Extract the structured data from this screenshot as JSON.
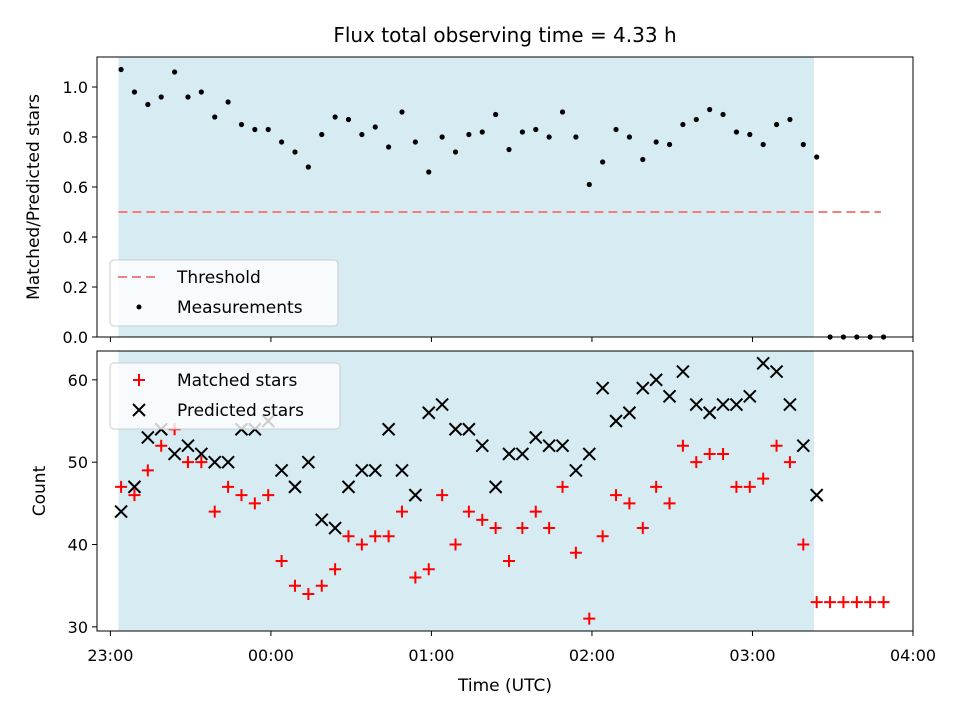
{
  "chart_data": [
    {
      "type": "scatter",
      "title": "Flux total observing time = 4.33 h",
      "ylabel": "Matched/Predicted stars",
      "xlim": [
        "22:55",
        "04:00"
      ],
      "ylim": [
        0,
        1.12
      ],
      "yticks": [
        {
          "v": 0,
          "label": "0.0"
        },
        {
          "v": 0.2,
          "label": "0.2"
        },
        {
          "v": 0.4,
          "label": "0.4"
        },
        {
          "v": 0.6,
          "label": "0.6"
        },
        {
          "v": 0.8,
          "label": "0.8"
        },
        {
          "v": 1.0,
          "label": "1.0"
        }
      ],
      "observing_span": [
        "23:03",
        "03:23"
      ],
      "threshold": {
        "name": "Threshold",
        "value": 0.5,
        "x_start": "23:03",
        "x_end": "03:48",
        "color": "#f08080"
      },
      "legend": {
        "placement": "lower-left",
        "entries": [
          "Threshold",
          "Measurements"
        ]
      },
      "series": [
        {
          "name": "Measurements",
          "marker": "dot",
          "color": "#000000",
          "x": [
            "23:04",
            "23:09",
            "23:14",
            "23:19",
            "23:24",
            "23:29",
            "23:34",
            "23:39",
            "23:44",
            "23:49",
            "23:54",
            "23:59",
            "00:04",
            "00:09",
            "00:14",
            "00:19",
            "00:24",
            "00:29",
            "00:34",
            "00:39",
            "00:44",
            "00:49",
            "00:54",
            "00:59",
            "01:04",
            "01:09",
            "01:14",
            "01:19",
            "01:24",
            "01:29",
            "01:34",
            "01:39",
            "01:44",
            "01:49",
            "01:54",
            "01:59",
            "02:04",
            "02:09",
            "02:14",
            "02:19",
            "02:24",
            "02:29",
            "02:34",
            "02:39",
            "02:44",
            "02:49",
            "02:54",
            "02:59",
            "03:04",
            "03:09",
            "03:14",
            "03:19",
            "03:24",
            "03:29",
            "03:34",
            "03:39",
            "03:44",
            "03:49"
          ],
          "y": [
            1.07,
            0.98,
            0.93,
            0.96,
            1.06,
            0.96,
            0.98,
            0.88,
            0.94,
            0.85,
            0.83,
            0.83,
            0.78,
            0.74,
            0.68,
            0.81,
            0.88,
            0.87,
            0.81,
            0.84,
            0.76,
            0.9,
            0.78,
            0.66,
            0.8,
            0.74,
            0.81,
            0.82,
            0.89,
            0.75,
            0.82,
            0.83,
            0.8,
            0.9,
            0.8,
            0.61,
            0.7,
            0.83,
            0.8,
            0.71,
            0.78,
            0.77,
            0.85,
            0.87,
            0.91,
            0.89,
            0.82,
            0.81,
            0.77,
            0.85,
            0.87,
            0.77,
            0.72,
            0.0,
            0.0,
            0.0,
            0.0,
            0.0
          ]
        }
      ]
    },
    {
      "type": "scatter",
      "xlabel": "Time (UTC)",
      "ylabel": "Count",
      "xlim": [
        "22:55",
        "04:00"
      ],
      "ylim": [
        29.5,
        63.5
      ],
      "xticks": [
        "23:00",
        "00:00",
        "01:00",
        "02:00",
        "03:00",
        "04:00"
      ],
      "yticks": [
        {
          "v": 30,
          "label": "30"
        },
        {
          "v": 40,
          "label": "40"
        },
        {
          "v": 50,
          "label": "50"
        },
        {
          "v": 60,
          "label": "60"
        }
      ],
      "observing_span": [
        "23:03",
        "03:23"
      ],
      "legend": {
        "placement": "upper-left",
        "entries": [
          "Matched stars",
          "Predicted stars"
        ]
      },
      "series": [
        {
          "name": "Matched stars",
          "marker": "plus",
          "color": "#ff0000",
          "x": [
            "23:04",
            "23:09",
            "23:14",
            "23:19",
            "23:24",
            "23:29",
            "23:34",
            "23:39",
            "23:44",
            "23:49",
            "23:54",
            "23:59",
            "00:04",
            "00:09",
            "00:14",
            "00:19",
            "00:24",
            "00:29",
            "00:34",
            "00:39",
            "00:44",
            "00:49",
            "00:54",
            "00:59",
            "01:04",
            "01:09",
            "01:14",
            "01:19",
            "01:24",
            "01:29",
            "01:34",
            "01:39",
            "01:44",
            "01:49",
            "01:54",
            "01:59",
            "02:04",
            "02:09",
            "02:14",
            "02:19",
            "02:24",
            "02:29",
            "02:34",
            "02:39",
            "02:44",
            "02:49",
            "02:54",
            "02:59",
            "03:04",
            "03:09",
            "03:14",
            "03:19",
            "03:24",
            "03:29",
            "03:34",
            "03:39",
            "03:44",
            "03:49"
          ],
          "y": [
            47,
            46,
            49,
            52,
            54,
            50,
            50,
            44,
            47,
            46,
            45,
            46,
            38,
            35,
            34,
            35,
            37,
            41,
            40,
            41,
            41,
            44,
            36,
            37,
            46,
            40,
            44,
            43,
            42,
            38,
            42,
            44,
            42,
            47,
            39,
            31,
            41,
            46,
            45,
            42,
            47,
            45,
            52,
            50,
            51,
            51,
            47,
            47,
            48,
            52,
            50,
            40,
            33,
            33,
            33,
            33,
            33,
            33
          ]
        },
        {
          "name": "Predicted stars",
          "marker": "x",
          "color": "#000000",
          "x": [
            "23:04",
            "23:09",
            "23:14",
            "23:19",
            "23:24",
            "23:29",
            "23:34",
            "23:39",
            "23:44",
            "23:49",
            "23:54",
            "23:59",
            "00:04",
            "00:09",
            "00:14",
            "00:19",
            "00:24",
            "00:29",
            "00:34",
            "00:39",
            "00:44",
            "00:49",
            "00:54",
            "00:59",
            "01:04",
            "01:09",
            "01:14",
            "01:19",
            "01:24",
            "01:29",
            "01:34",
            "01:39",
            "01:44",
            "01:49",
            "01:54",
            "01:59",
            "02:04",
            "02:09",
            "02:14",
            "02:19",
            "02:24",
            "02:29",
            "02:34",
            "02:39",
            "02:44",
            "02:49",
            "02:54",
            "02:59",
            "03:04",
            "03:09",
            "03:14",
            "03:19",
            "03:24"
          ],
          "y": [
            44,
            47,
            53,
            54,
            51,
            52,
            51,
            50,
            50,
            54,
            54,
            55,
            49,
            47,
            50,
            43,
            42,
            47,
            49,
            49,
            54,
            49,
            46,
            56,
            57,
            54,
            54,
            52,
            47,
            51,
            51,
            53,
            52,
            52,
            49,
            51,
            59,
            55,
            56,
            59,
            60,
            58,
            61,
            57,
            56,
            57,
            57,
            58,
            62,
            61,
            57,
            52,
            46
          ]
        }
      ]
    }
  ]
}
